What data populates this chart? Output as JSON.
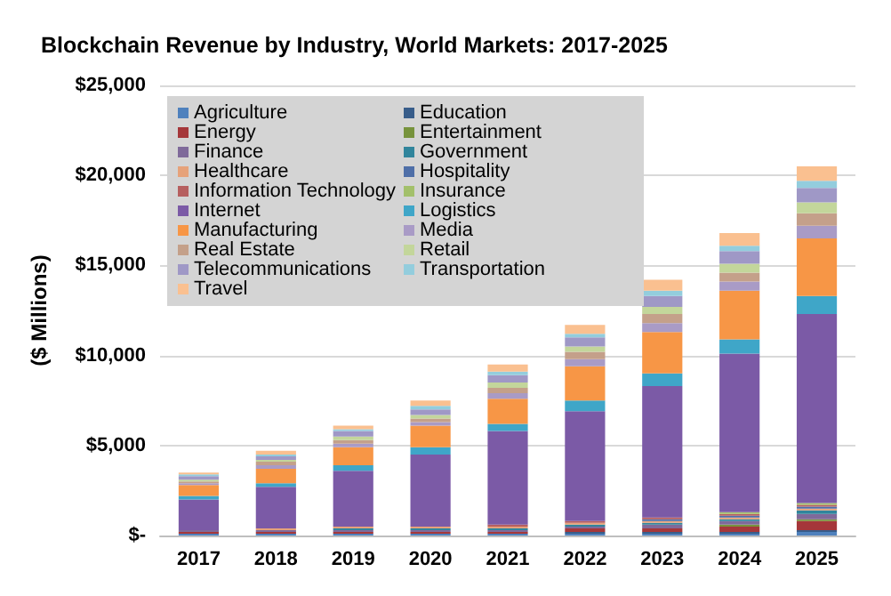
{
  "chart_data": {
    "type": "bar",
    "title": "Blockchain Revenue by Industry, World Markets: 2017-2025",
    "ylabel": "($ Millions)",
    "stacked": true,
    "categories": [
      "2017",
      "2018",
      "2019",
      "2020",
      "2021",
      "2022",
      "2023",
      "2024",
      "2025"
    ],
    "ylim": [
      0,
      25000
    ],
    "yticks": [
      {
        "value": 0,
        "label": "$-"
      },
      {
        "value": 5000,
        "label": "$5,000"
      },
      {
        "value": 10000,
        "label": "$10,000"
      },
      {
        "value": 15000,
        "label": "$15,000"
      },
      {
        "value": 20000,
        "label": "$20,000"
      },
      {
        "value": 25000,
        "label": "$25,000"
      }
    ],
    "grid": "y",
    "legend": "top left",
    "series": [
      {
        "name": "Agriculture",
        "color": "#4f81bd",
        "values": [
          100,
          100,
          100,
          100,
          100,
          100,
          100,
          100,
          200
        ]
      },
      {
        "name": "Education",
        "color": "#385d8a",
        "values": [
          0,
          0,
          0,
          0,
          0,
          100,
          100,
          100,
          100
        ]
      },
      {
        "name": "Energy",
        "color": "#a5373a",
        "values": [
          100,
          100,
          100,
          100,
          100,
          200,
          200,
          300,
          500
        ]
      },
      {
        "name": "Entertainment",
        "color": "#77933c",
        "values": [
          0,
          0,
          0,
          0,
          0,
          0,
          0,
          100,
          100
        ]
      },
      {
        "name": "Finance",
        "color": "#7f6a9a",
        "values": [
          100,
          100,
          100,
          100,
          100,
          100,
          200,
          200,
          300
        ]
      },
      {
        "name": "Government",
        "color": "#31859c",
        "values": [
          0,
          0,
          100,
          100,
          100,
          100,
          100,
          100,
          200
        ]
      },
      {
        "name": "Healthcare",
        "color": "#e6a27a",
        "values": [
          0,
          100,
          100,
          100,
          100,
          100,
          100,
          100,
          100
        ]
      },
      {
        "name": "Hospitality",
        "color": "#4f6fa8",
        "values": [
          0,
          0,
          0,
          0,
          0,
          0,
          100,
          100,
          100
        ]
      },
      {
        "name": "Information Technology",
        "color": "#b65f5f",
        "values": [
          0,
          0,
          0,
          0,
          100,
          100,
          100,
          100,
          100
        ]
      },
      {
        "name": "Insurance",
        "color": "#a3c06b",
        "values": [
          0,
          0,
          0,
          0,
          0,
          0,
          0,
          100,
          100
        ]
      },
      {
        "name": "Internet",
        "color": "#7b5aa6",
        "values": [
          1700,
          2300,
          3100,
          4000,
          5200,
          6100,
          7300,
          8800,
          10500
        ]
      },
      {
        "name": "Logistics",
        "color": "#3fa6c8",
        "values": [
          200,
          200,
          300,
          400,
          400,
          600,
          700,
          800,
          1000
        ]
      },
      {
        "name": "Manufacturing",
        "color": "#f79646",
        "values": [
          600,
          800,
          1000,
          1200,
          1400,
          1900,
          2300,
          2700,
          3200
        ]
      },
      {
        "name": "Media",
        "color": "#a99bc6",
        "values": [
          100,
          200,
          200,
          200,
          300,
          400,
          500,
          500,
          700
        ]
      },
      {
        "name": "Real Estate",
        "color": "#c4a08a",
        "values": [
          100,
          200,
          200,
          200,
          300,
          400,
          500,
          500,
          700
        ]
      },
      {
        "name": "Retail",
        "color": "#c3d69b",
        "values": [
          100,
          100,
          200,
          200,
          300,
          300,
          400,
          500,
          600
        ]
      },
      {
        "name": "Telecommunications",
        "color": "#9f98c6",
        "values": [
          200,
          200,
          300,
          300,
          400,
          500,
          600,
          700,
          800
        ]
      },
      {
        "name": "Transportation",
        "color": "#93cddd",
        "values": [
          100,
          100,
          100,
          200,
          200,
          200,
          300,
          300,
          400
        ]
      },
      {
        "name": "Travel",
        "color": "#fac090",
        "values": [
          100,
          200,
          200,
          300,
          400,
          500,
          600,
          700,
          800
        ]
      }
    ]
  }
}
